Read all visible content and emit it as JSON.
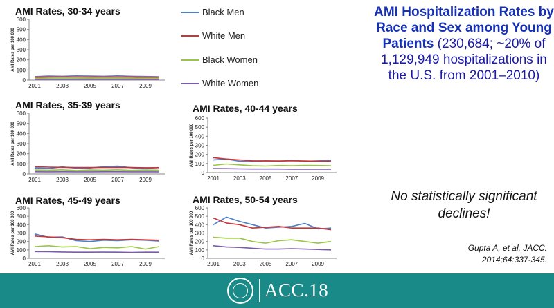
{
  "slide": {
    "title_bold": "AMI Hospitalization Rates by Race and Sex among Young Patients",
    "title_rest": " (230,684; ~20% of 1,129,949 hospitalizations in the U.S. from 2001–2010)",
    "statement": "No statistically significant declines!",
    "citation_line1": "Gupta A, et al. JACC.",
    "citation_line2": "2014;64:337-345.",
    "footer_logo_text": "ACC.18",
    "footer_color": "#1a8a88"
  },
  "legend": [
    {
      "name": "Black Men",
      "color": "#4a7fc8"
    },
    {
      "name": "White Men",
      "color": "#cc3333"
    },
    {
      "name": "Black Women",
      "color": "#99c545"
    },
    {
      "name": "White Women",
      "color": "#7a5ca8"
    }
  ],
  "chart_data": [
    {
      "type": "line",
      "title": "AMI Rates, 30-34 years",
      "ylabel": "AMI Rates per 100 000",
      "ylim": [
        0,
        600
      ],
      "yticks": [
        "0",
        "100",
        "200",
        "300",
        "400",
        "500",
        "600"
      ],
      "x": [
        2001,
        2002,
        2003,
        2004,
        2005,
        2006,
        2007,
        2008,
        2009,
        2010
      ],
      "xticks": [
        "2001",
        "2003",
        "2005",
        "2007",
        "2009"
      ],
      "series": [
        {
          "name": "Black Men",
          "values": [
            35,
            40,
            38,
            42,
            40,
            38,
            42,
            38,
            36,
            34
          ]
        },
        {
          "name": "White Men",
          "values": [
            28,
            30,
            30,
            31,
            30,
            29,
            30,
            30,
            28,
            27
          ]
        },
        {
          "name": "Black Women",
          "values": [
            18,
            20,
            22,
            20,
            19,
            21,
            20,
            19,
            18,
            18
          ]
        },
        {
          "name": "White Women",
          "values": [
            8,
            9,
            9,
            9,
            9,
            9,
            9,
            9,
            8,
            8
          ]
        }
      ]
    },
    {
      "type": "line",
      "title": "AMI Rates, 35-39 years",
      "ylabel": "AMI Rates per 100 000",
      "ylim": [
        0,
        600
      ],
      "yticks": [
        "0",
        "100",
        "200",
        "300",
        "400",
        "500",
        "600"
      ],
      "x": [
        2001,
        2002,
        2003,
        2004,
        2005,
        2006,
        2007,
        2008,
        2009,
        2010
      ],
      "xticks": [
        "2001",
        "2003",
        "2005",
        "2007",
        "2009"
      ],
      "series": [
        {
          "name": "Black Men",
          "values": [
            60,
            55,
            70,
            58,
            60,
            72,
            78,
            62,
            55,
            65
          ]
        },
        {
          "name": "White Men",
          "values": [
            72,
            68,
            66,
            65,
            64,
            65,
            66,
            64,
            62,
            63
          ]
        },
        {
          "name": "Black Women",
          "values": [
            40,
            38,
            42,
            35,
            40,
            38,
            42,
            36,
            40,
            38
          ]
        },
        {
          "name": "White Women",
          "values": [
            22,
            21,
            22,
            21,
            21,
            22,
            22,
            21,
            21,
            21
          ]
        }
      ]
    },
    {
      "type": "line",
      "title": "AMI Rates, 40-44 years",
      "ylabel": "AMI Rates per 100 000",
      "ylim": [
        0,
        600
      ],
      "yticks": [
        "0",
        "100",
        "200",
        "300",
        "400",
        "500",
        "600"
      ],
      "x": [
        2001,
        2002,
        2003,
        2004,
        2005,
        2006,
        2007,
        2008,
        2009,
        2010
      ],
      "xticks": [
        "2001",
        "2003",
        "2005",
        "2007",
        "2009"
      ],
      "series": [
        {
          "name": "Black Men",
          "values": [
            140,
            150,
            125,
            120,
            130,
            125,
            135,
            125,
            130,
            135
          ]
        },
        {
          "name": "White Men",
          "values": [
            165,
            150,
            140,
            130,
            130,
            128,
            130,
            128,
            125,
            125
          ]
        },
        {
          "name": "Black Women",
          "values": [
            80,
            95,
            85,
            75,
            72,
            78,
            75,
            80,
            78,
            75
          ]
        },
        {
          "name": "White Women",
          "values": [
            45,
            44,
            42,
            40,
            40,
            40,
            39,
            38,
            38,
            38
          ]
        }
      ]
    },
    {
      "type": "line",
      "title": "AMI Rates, 45-49 years",
      "ylabel": "AMI Rates per 100 000",
      "ylim": [
        0,
        600
      ],
      "yticks": [
        "0",
        "100",
        "200",
        "300",
        "400",
        "500",
        "600"
      ],
      "x": [
        2001,
        2002,
        2003,
        2004,
        2005,
        2006,
        2007,
        2008,
        2009,
        2010
      ],
      "xticks": [
        "2001",
        "2003",
        "2005",
        "2007",
        "2009"
      ],
      "series": [
        {
          "name": "Black Men",
          "values": [
            290,
            250,
            255,
            210,
            200,
            215,
            210,
            220,
            215,
            205
          ]
        },
        {
          "name": "White Men",
          "values": [
            265,
            255,
            245,
            225,
            220,
            225,
            220,
            225,
            220,
            215
          ]
        },
        {
          "name": "Black Women",
          "values": [
            140,
            150,
            135,
            140,
            115,
            130,
            125,
            140,
            110,
            140
          ]
        },
        {
          "name": "White Women",
          "values": [
            80,
            78,
            75,
            72,
            72,
            73,
            72,
            70,
            72,
            72
          ]
        }
      ]
    },
    {
      "type": "line",
      "title": "AMI Rates, 50-54 years",
      "ylabel": "AMI Rates per 100 000",
      "ylim": [
        0,
        600
      ],
      "yticks": [
        "0",
        "100",
        "200",
        "300",
        "400",
        "500",
        "600"
      ],
      "x": [
        2001,
        2002,
        2003,
        2004,
        2005,
        2006,
        2007,
        2008,
        2009,
        2010
      ],
      "xticks": [
        "2001",
        "2003",
        "2005",
        "2007",
        "2009"
      ],
      "series": [
        {
          "name": "Black Men",
          "values": [
            400,
            490,
            440,
            400,
            360,
            370,
            380,
            415,
            350,
            360
          ]
        },
        {
          "name": "White Men",
          "values": [
            480,
            420,
            400,
            360,
            370,
            380,
            360,
            360,
            360,
            340
          ]
        },
        {
          "name": "Black Women",
          "values": [
            250,
            240,
            240,
            200,
            180,
            210,
            220,
            200,
            180,
            200
          ]
        },
        {
          "name": "White Women",
          "values": [
            150,
            135,
            130,
            120,
            110,
            110,
            115,
            110,
            105,
            100
          ]
        }
      ]
    }
  ]
}
